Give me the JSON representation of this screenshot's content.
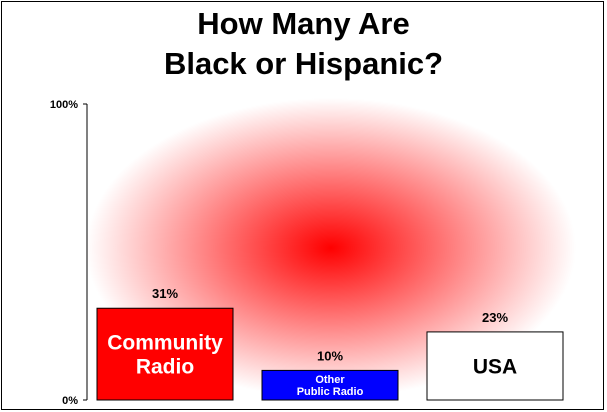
{
  "chart_data": {
    "type": "bar",
    "title_lines": [
      "How Many Are",
      "Black or Hispanic?"
    ],
    "categories": [
      "Community Radio",
      "Other Public Radio",
      "USA"
    ],
    "values": [
      31,
      10,
      23
    ],
    "value_labels": [
      "31%",
      "10%",
      "23%"
    ],
    "bar_label_lines": [
      [
        "Community",
        "Radio"
      ],
      [
        "Other",
        "Public Radio"
      ],
      [
        "USA"
      ]
    ],
    "bar_colors": [
      "#ff0000",
      "#0000ff",
      "#ffffff"
    ],
    "bar_label_colors": [
      "#ffffff",
      "#ffffff",
      "#000000"
    ],
    "ylim": [
      0,
      100
    ],
    "yticks": [
      {
        "value": 0,
        "label": "0%"
      },
      {
        "value": 100,
        "label": "100%"
      }
    ],
    "background_gradient_color": "#ff0000",
    "grid": false,
    "legend": "none"
  }
}
